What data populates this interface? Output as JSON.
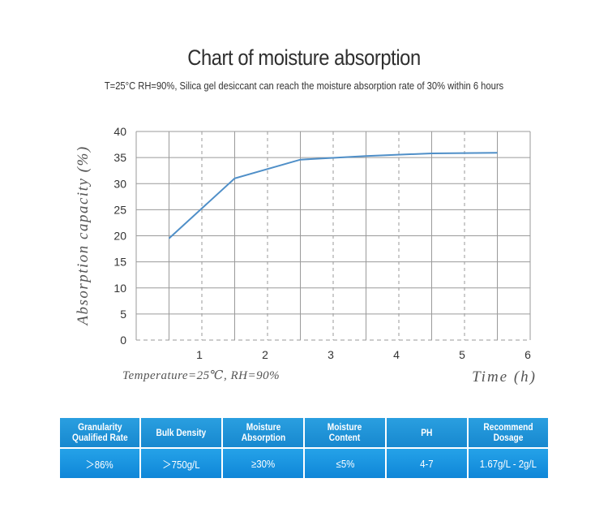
{
  "chart_data": {
    "type": "line",
    "title": "Chart of moisture absorption",
    "subtitle": "T=25°C RH=90%, Silica gel desiccant can reach the moisture absorption rate of 30% within 6 hours",
    "ylabel": "Absorption capacity  (%)",
    "xlabel": "Time (h)",
    "annotation": "Temperature=25℃, RH=90%",
    "xlim": [
      0,
      6
    ],
    "ylim": [
      0,
      40
    ],
    "x_ticks": [
      "1",
      "2",
      "3",
      "4",
      "5",
      "6"
    ],
    "y_ticks": [
      "0",
      "5",
      "10",
      "15",
      "20",
      "25",
      "30",
      "35",
      "40"
    ],
    "grid": true,
    "series": [
      {
        "x": [
          0.5,
          1.5,
          2.5,
          3.5,
          4.5,
          5.5
        ],
        "y": [
          19.5,
          31,
          34.6,
          35.3,
          35.8,
          35.9
        ],
        "color": "#4f8fc8"
      }
    ]
  },
  "specs": {
    "headers": [
      [
        "Granularity",
        "Qualified Rate"
      ],
      [
        "Bulk Density"
      ],
      [
        "Moisture",
        "Absorption"
      ],
      [
        "Moisture",
        "Content"
      ],
      [
        "PH"
      ],
      [
        "Recommend",
        "Dosage"
      ]
    ],
    "values": [
      "＞86%",
      "＞750g/L",
      "≥30%",
      "≤5%",
      "4-7",
      "1.67g/L - 2g/L"
    ]
  }
}
